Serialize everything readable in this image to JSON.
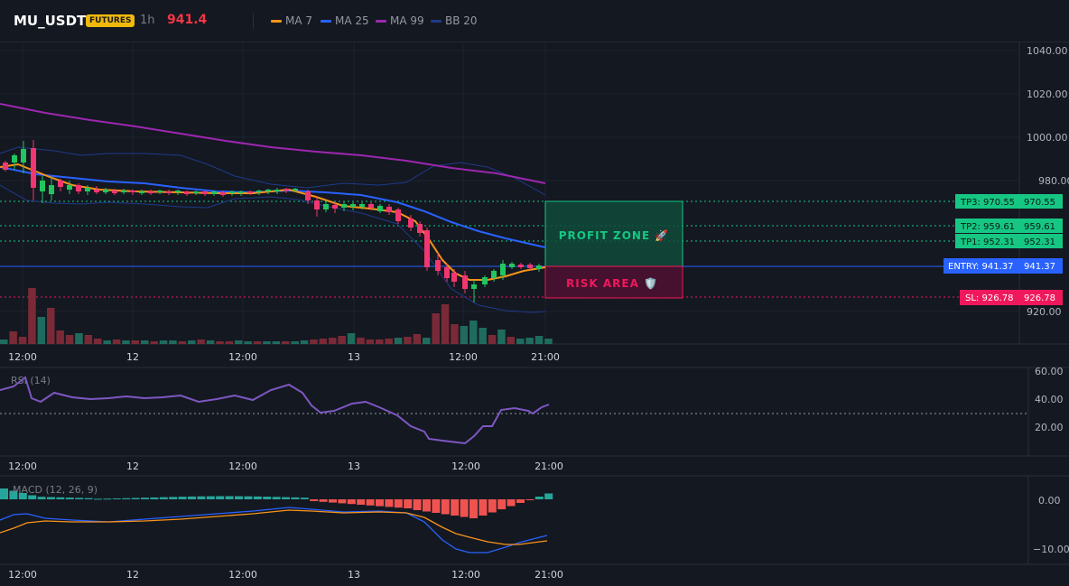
{
  "header": {
    "symbol": "MU_USDT",
    "badge": "FUTURES",
    "timeframe": "1h",
    "price": "941.4",
    "legend": [
      {
        "label": "MA 7",
        "color": "#f7931a"
      },
      {
        "label": "MA 25",
        "color": "#2962ff"
      },
      {
        "label": "MA 99",
        "color": "#9c27b0"
      },
      {
        "label": "BB 20",
        "color": "#1e3a8a"
      }
    ]
  },
  "price_axis": [
    "1040.00",
    "1020.00",
    "1000.00",
    "980.00",
    "920.00"
  ],
  "time_axis": [
    "12:00",
    "12",
    "12:00",
    "13",
    "12:00",
    "21:00"
  ],
  "levels": {
    "tp3": {
      "label": "TP3: 970.55",
      "value": "970.55"
    },
    "tp2": {
      "label": "TP2: 959.61",
      "value": "959.61"
    },
    "tp1": {
      "label": "TP1: 952.31",
      "value": "952.31"
    },
    "entry": {
      "label": "ENTRY: 941.37",
      "value": "941.37"
    },
    "sl": {
      "label": "SL: 926.78",
      "value": "926.78"
    }
  },
  "zones": {
    "profit": "PROFIT ZONE 🚀",
    "risk": "RISK AREA 🛡️"
  },
  "rsi": {
    "label": "RSI (14)",
    "axis": [
      "60.00",
      "40.00",
      "20.00"
    ]
  },
  "macd": {
    "label": "MACD (12, 26, 9)",
    "axis": [
      "0.00",
      "−10.00"
    ]
  },
  "colors": {
    "up": "#26a69a",
    "down": "#ef5350",
    "up_candle": "#22c55e",
    "down_candle": "#f23670",
    "profit": "#16c784",
    "risk": "#f0185c",
    "entry": "#2962ff",
    "rsi": "#7e57c2"
  },
  "chart_data": {
    "type": "line",
    "title": "",
    "x_ticks": [
      "12:00",
      "12",
      "12:00",
      "13",
      "12:00",
      "21:00"
    ],
    "ylim": [
      910,
      1045
    ],
    "levels": {
      "tp3": 970.55,
      "tp2": 959.61,
      "tp1": 952.31,
      "entry": 941.37,
      "sl": 926.78
    },
    "series": [
      {
        "name": "MA 99",
        "values": [
          1015,
          1011,
          1007,
          1002,
          997,
          993,
          990,
          988,
          985,
          979
        ]
      },
      {
        "name": "MA 25",
        "values": [
          985,
          983,
          981,
          978,
          975,
          975,
          973,
          972,
          965,
          950
        ]
      },
      {
        "name": "MA 7",
        "values": [
          986,
          980,
          976,
          975,
          975,
          976,
          972,
          968,
          935,
          940
        ]
      }
    ],
    "rsi": {
      "ylim": [
        0,
        60
      ],
      "values": [
        46,
        52,
        40,
        42,
        41,
        41,
        43,
        42,
        40,
        32,
        34,
        38,
        30,
        22,
        12,
        10,
        20,
        30,
        34,
        36
      ]
    },
    "macd": {
      "ylim": [
        -12,
        2
      ],
      "histogram": [
        1.5,
        0.5,
        0,
        0,
        0.3,
        0.5,
        0.3,
        -0.5,
        -1,
        -3.5,
        -4,
        -2,
        0.5,
        1.5
      ]
    }
  }
}
